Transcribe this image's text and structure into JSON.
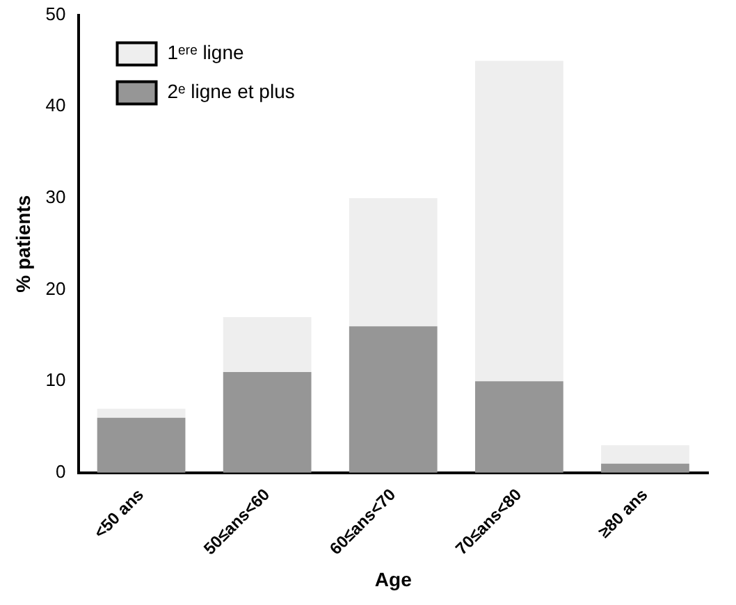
{
  "chart_data": {
    "type": "bar",
    "stacked": true,
    "xlabel": "Age",
    "ylabel": "% patients",
    "categories": [
      "<50 ans",
      "50≤ans<60",
      "60≤ans<70",
      "70≤ans<80",
      "≥80 ans"
    ],
    "series": [
      {
        "name": "2ᵉ ligne et plus",
        "color": "#969696",
        "values": [
          6,
          11,
          16,
          10,
          1
        ]
      },
      {
        "name": "1ᵉʳᵉ ligne",
        "color": "#eeeeee",
        "values": [
          1,
          6,
          14,
          35,
          2
        ]
      }
    ],
    "ylim": [
      0,
      50
    ],
    "yticks": [
      0,
      10,
      20,
      30,
      40,
      50
    ],
    "grid": false,
    "legend": "top left"
  }
}
